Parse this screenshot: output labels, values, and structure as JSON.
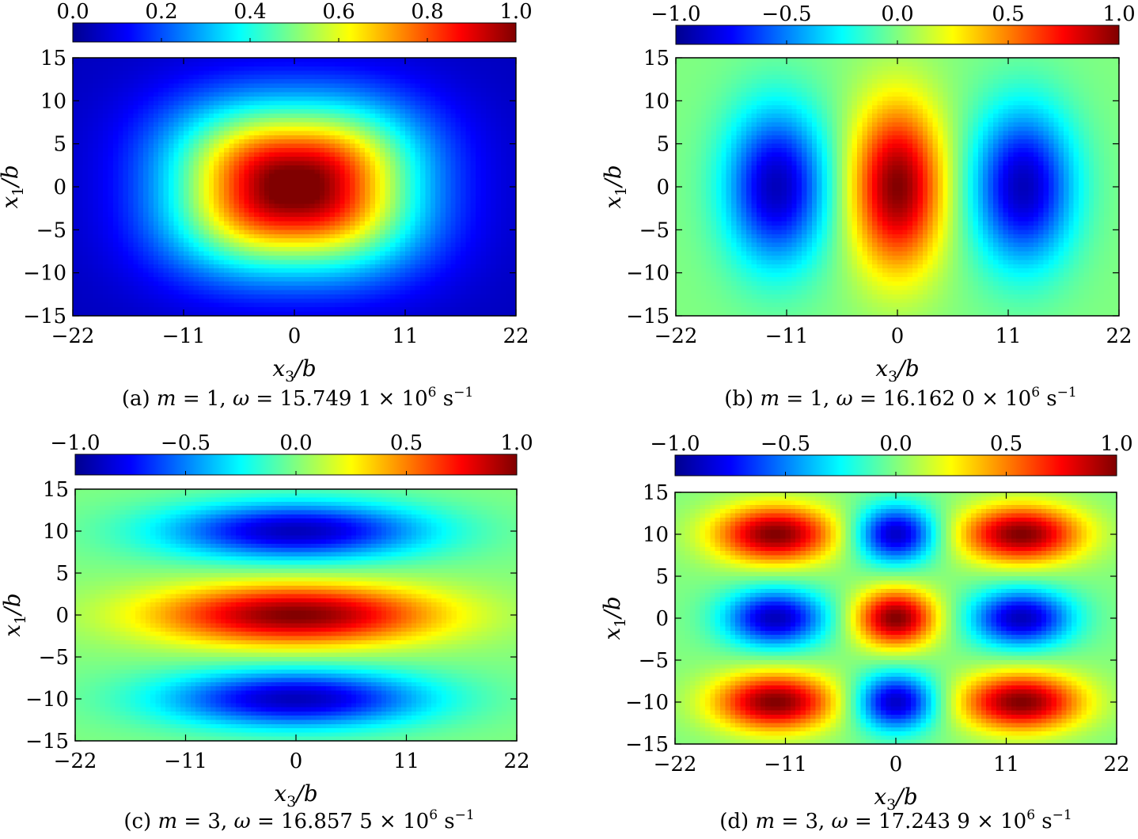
{
  "colormap": [
    "#00008f",
    "#0000ff",
    "#0080ff",
    "#00ffff",
    "#80ff80",
    "#ffff00",
    "#ff8000",
    "#ff0000",
    "#800000"
  ],
  "chart_data": [
    {
      "type": "heatmap",
      "caption": {
        "prefix": "(a)",
        "m": "m",
        "m_value": "1",
        "omega": "ω",
        "omega_value": "15.749 1",
        "power": "10",
        "exponent": "6",
        "unit": "s",
        "unit_exponent": "−1"
      },
      "colorbar": {
        "range": [
          0,
          1
        ],
        "ticks": [
          "0.0",
          "0.2",
          "0.4",
          "0.6",
          "0.8",
          "1.0"
        ]
      },
      "xlabel": {
        "var": "x",
        "sub": "3",
        "den": "/b"
      },
      "ylabel": {
        "var": "x",
        "sub": "1",
        "den": "/b"
      },
      "xlim": [
        -22,
        22
      ],
      "ylim": [
        -15,
        15
      ],
      "xticks": [
        "−22",
        "−11",
        "0",
        "11",
        "22"
      ],
      "yticks": [
        "15",
        "10",
        "5",
        "0",
        "−5",
        "−10",
        "−15"
      ],
      "lobes": [
        {
          "x": 0,
          "y": 0,
          "amp": 1.0,
          "sx": 11.5,
          "sy": 9.0,
          "p": 2.5
        }
      ],
      "background": 0.05
    },
    {
      "type": "heatmap",
      "caption": {
        "prefix": "(b)",
        "m": "m",
        "m_value": "1",
        "omega": "ω",
        "omega_value": "16.162 0",
        "power": "10",
        "exponent": "6",
        "unit": "s",
        "unit_exponent": "−1"
      },
      "colorbar": {
        "range": [
          -1,
          1
        ],
        "ticks": [
          "−1.0",
          "−0.5",
          "0.0",
          "0.5",
          "1.0"
        ]
      },
      "xlabel": {
        "var": "x",
        "sub": "3",
        "den": "/b"
      },
      "ylabel": {
        "var": "x",
        "sub": "1",
        "den": "/b"
      },
      "xlim": [
        -22,
        22
      ],
      "ylim": [
        -15,
        15
      ],
      "xticks": [
        "−22",
        "−11",
        "0",
        "11",
        "22"
      ],
      "yticks": [
        "15",
        "10",
        "5",
        "0",
        "−5",
        "−10",
        "−15"
      ],
      "lobes": [
        {
          "x": 0,
          "y": 0,
          "amp": 1.0,
          "sx": 4.5,
          "sy": 9.5,
          "p": 2.0
        },
        {
          "x": -12,
          "y": 0,
          "amp": -0.9,
          "sx": 5.0,
          "sy": 9.0,
          "p": 2.0
        },
        {
          "x": 12.5,
          "y": 0,
          "amp": -0.9,
          "sx": 5.0,
          "sy": 9.0,
          "p": 2.0
        }
      ],
      "background": 0.0
    },
    {
      "type": "heatmap",
      "caption": {
        "prefix": "(c)",
        "m": "m",
        "m_value": "3",
        "omega": "ω",
        "omega_value": "16.857 5",
        "power": "10",
        "exponent": "6",
        "unit": "s",
        "unit_exponent": "−1"
      },
      "colorbar": {
        "range": [
          -1,
          1
        ],
        "ticks": [
          "−1.0",
          "−0.5",
          "0.0",
          "0.5",
          "1.0"
        ]
      },
      "xlabel": {
        "var": "x",
        "sub": "3",
        "den": "/b"
      },
      "ylabel": {
        "var": "x",
        "sub": "1",
        "den": "/b"
      },
      "xlim": [
        -22,
        22
      ],
      "ylim": [
        -15,
        15
      ],
      "xticks": [
        "−22",
        "−11",
        "0",
        "11",
        "22"
      ],
      "yticks": [
        "15",
        "10",
        "5",
        "0",
        "−5",
        "−10",
        "−15"
      ],
      "lobes": [
        {
          "x": 0,
          "y": 0,
          "amp": 1.0,
          "sx": 14.0,
          "sy": 3.6,
          "p": 2.0
        },
        {
          "x": 0,
          "y": 10,
          "amp": -0.9,
          "sx": 13.0,
          "sy": 3.4,
          "p": 2.0
        },
        {
          "x": 0,
          "y": -10,
          "amp": -0.9,
          "sx": 13.0,
          "sy": 3.4,
          "p": 2.0
        }
      ],
      "background": 0.0
    },
    {
      "type": "heatmap",
      "caption": {
        "prefix": "(d)",
        "m": "m",
        "m_value": "3",
        "omega": "ω",
        "omega_value": "17.243 9",
        "power": "10",
        "exponent": "6",
        "unit": "s",
        "unit_exponent": "−1"
      },
      "colorbar": {
        "range": [
          -1,
          1
        ],
        "ticks": [
          "−1.0",
          "−0.5",
          "0.0",
          "0.5",
          "1.0"
        ]
      },
      "xlabel": {
        "var": "x",
        "sub": "3",
        "den": "/b"
      },
      "ylabel": {
        "var": "x",
        "sub": "1",
        "den": "/b"
      },
      "xlim": [
        -22,
        22
      ],
      "ylim": [
        -15,
        15
      ],
      "xticks": [
        "−22",
        "−11",
        "0",
        "11",
        "22"
      ],
      "yticks": [
        "15",
        "10",
        "5",
        "0",
        "−5",
        "−10",
        "−15"
      ],
      "lobes": [
        {
          "x": -12,
          "y": 10,
          "amp": 1.0,
          "sx": 6.0,
          "sy": 3.4,
          "p": 2.0
        },
        {
          "x": 0,
          "y": 10,
          "amp": -0.9,
          "sx": 4.0,
          "sy": 3.4,
          "p": 2.0
        },
        {
          "x": 12.5,
          "y": 10,
          "amp": 1.0,
          "sx": 6.0,
          "sy": 3.4,
          "p": 2.0
        },
        {
          "x": -12,
          "y": 0,
          "amp": -0.9,
          "sx": 5.0,
          "sy": 3.4,
          "p": 2.0
        },
        {
          "x": 0,
          "y": 0,
          "amp": 1.0,
          "sx": 4.0,
          "sy": 3.4,
          "p": 2.0
        },
        {
          "x": 12.5,
          "y": 0,
          "amp": -0.9,
          "sx": 5.0,
          "sy": 3.4,
          "p": 2.0
        },
        {
          "x": -12,
          "y": -10,
          "amp": 1.0,
          "sx": 6.0,
          "sy": 3.4,
          "p": 2.0
        },
        {
          "x": 0,
          "y": -10,
          "amp": -0.9,
          "sx": 4.0,
          "sy": 3.4,
          "p": 2.0
        },
        {
          "x": 12.5,
          "y": -10,
          "amp": 1.0,
          "sx": 6.0,
          "sy": 3.4,
          "p": 2.0
        }
      ],
      "background": 0.0
    }
  ]
}
